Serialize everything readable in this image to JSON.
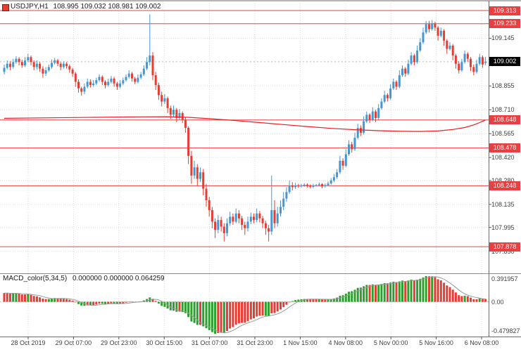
{
  "title": {
    "symbol": "USDJPY,H1",
    "ohlc": "108.995 109.032 108.981 109.002"
  },
  "indicator": {
    "label": "MACD_color(5,34,5)",
    "values": "0.000000 0.000000 0.064259"
  },
  "axes": {
    "price_gridlines": [
      {
        "value": 109.145,
        "label": "109.145"
      },
      {
        "value": 108.855,
        "label": "108.855"
      },
      {
        "value": 108.71,
        "label": "108.710"
      },
      {
        "value": 108.565,
        "label": "108.565"
      },
      {
        "value": 108.42,
        "label": "108.420"
      },
      {
        "value": 108.28,
        "label": "108.280"
      },
      {
        "value": 108.135,
        "label": "108.135"
      },
      {
        "value": 107.995,
        "label": "107.995"
      },
      {
        "value": 107.85,
        "label": "107.850"
      }
    ],
    "time_labels": [
      "28 Oct 2019",
      "29 Oct 07:00",
      "29 Oct 23:00",
      "30 Oct 15:00",
      "31 Oct 07:00",
      "31 Oct 23:00",
      "1 Nov 15:00",
      "4 Nov 08:00",
      "5 Nov 00:00",
      "5 Nov 16:00",
      "6 Nov 08:00"
    ],
    "macd_axis": {
      "max_label": "0.391957",
      "zero_label": "0.00",
      "min_label": "-0.479827"
    }
  },
  "levels": [
    {
      "value": 109.313,
      "label": "109.313"
    },
    {
      "value": 109.233,
      "label": "109.233"
    },
    {
      "value": 108.648,
      "label": "108.648"
    },
    {
      "value": 108.478,
      "label": "108.478"
    },
    {
      "value": 108.248,
      "label": "108.248"
    },
    {
      "value": 107.878,
      "label": "107.878"
    }
  ],
  "current_price": {
    "value": 109.002,
    "label": "109.002"
  },
  "chart_data": {
    "type": "candlestick",
    "symbol": "USDJPY",
    "timeframe": "H1",
    "current_bar": {
      "open": "108.995",
      "high": "109.032",
      "low": "108.981",
      "close": "109.002"
    },
    "colors": {
      "bull": "#4696d2",
      "bear": "#e63c32",
      "ma_line": "#e82020",
      "level_line": "#e84040",
      "level_badge_bg": "#e84040",
      "current_price_bg": "#000000",
      "macd_up": "#2ca02c",
      "macd_down": "#e63c32",
      "signal_line": "#9a9a9a",
      "grid": "#d9d9d9"
    },
    "indicator": {
      "type": "macd_histogram",
      "fast": 5,
      "slow": 34,
      "signal": 5,
      "initial_gap": 0.13
    },
    "ma_line_points": [
      [
        0,
        108.658
      ],
      [
        15,
        108.661
      ],
      [
        30,
        108.664
      ],
      [
        45,
        108.667
      ],
      [
        55,
        108.668
      ],
      [
        62,
        108.664
      ],
      [
        70,
        108.655
      ],
      [
        78,
        108.644
      ],
      [
        86,
        108.632
      ],
      [
        94,
        108.62
      ],
      [
        102,
        108.608
      ],
      [
        110,
        108.597
      ],
      [
        118,
        108.589
      ],
      [
        126,
        108.583
      ],
      [
        134,
        108.579
      ],
      [
        140,
        108.578
      ],
      [
        146,
        108.581
      ],
      [
        151,
        108.59
      ],
      [
        155,
        108.602
      ],
      [
        158,
        108.618
      ],
      [
        160,
        108.632
      ],
      [
        162,
        108.648
      ]
    ],
    "candles": [
      [
        108.94,
        108.985,
        108.925,
        108.965
      ],
      [
        108.965,
        109.01,
        108.955,
        108.99
      ],
      [
        108.99,
        109.005,
        108.95,
        108.97
      ],
      [
        108.97,
        109.02,
        108.96,
        109.0
      ],
      [
        109.0,
        109.035,
        108.99,
        109.02
      ],
      [
        109.02,
        109.03,
        108.98,
        109.0
      ],
      [
        109.0,
        109.015,
        108.965,
        108.98
      ],
      [
        108.98,
        109.03,
        108.97,
        109.01
      ],
      [
        109.01,
        109.05,
        109.0,
        109.03
      ],
      [
        109.03,
        109.04,
        108.98,
        109.0
      ],
      [
        109.0,
        109.01,
        108.95,
        108.97
      ],
      [
        108.97,
        109.01,
        108.955,
        108.99
      ],
      [
        108.99,
        109.0,
        108.94,
        108.96
      ],
      [
        108.96,
        108.975,
        108.905,
        108.93
      ],
      [
        108.93,
        108.97,
        108.915,
        108.95
      ],
      [
        108.95,
        108.985,
        108.94,
        108.97
      ],
      [
        108.97,
        109.015,
        108.96,
        108.995
      ],
      [
        108.995,
        109.025,
        108.985,
        109.01
      ],
      [
        109.01,
        109.02,
        108.975,
        108.99
      ],
      [
        108.99,
        109.0,
        108.95,
        108.97
      ],
      [
        108.97,
        109.005,
        108.96,
        108.99
      ],
      [
        108.99,
        109.0,
        108.96,
        108.975
      ],
      [
        108.975,
        108.985,
        108.935,
        108.955
      ],
      [
        108.955,
        108.965,
        108.91,
        108.93
      ],
      [
        108.93,
        108.94,
        108.85,
        108.88
      ],
      [
        108.88,
        108.895,
        108.815,
        108.84
      ],
      [
        108.84,
        108.85,
        108.795,
        108.82
      ],
      [
        108.82,
        108.87,
        108.805,
        108.85
      ],
      [
        108.85,
        108.9,
        108.84,
        108.88
      ],
      [
        108.88,
        108.895,
        108.845,
        108.86
      ],
      [
        108.86,
        108.89,
        108.85,
        108.87
      ],
      [
        108.87,
        108.905,
        108.86,
        108.89
      ],
      [
        108.89,
        108.925,
        108.88,
        108.91
      ],
      [
        108.91,
        108.92,
        108.86,
        108.88
      ],
      [
        108.88,
        108.89,
        108.84,
        108.86
      ],
      [
        108.86,
        108.9,
        108.85,
        108.88
      ],
      [
        108.88,
        108.915,
        108.87,
        108.9
      ],
      [
        108.9,
        108.91,
        108.85,
        108.87
      ],
      [
        108.87,
        108.88,
        108.83,
        108.85
      ],
      [
        108.85,
        108.89,
        108.84,
        108.87
      ],
      [
        108.87,
        108.905,
        108.86,
        108.89
      ],
      [
        108.89,
        108.925,
        108.88,
        108.91
      ],
      [
        108.91,
        108.95,
        108.9,
        108.93
      ],
      [
        108.93,
        108.94,
        108.88,
        108.9
      ],
      [
        108.9,
        108.91,
        108.865,
        108.88
      ],
      [
        108.88,
        108.925,
        108.87,
        108.905
      ],
      [
        108.905,
        108.94,
        108.895,
        108.925
      ],
      [
        108.925,
        108.98,
        108.915,
        108.96
      ],
      [
        108.96,
        109.03,
        108.95,
        109.0
      ],
      [
        109.0,
        109.29,
        108.98,
        109.04
      ],
      [
        109.04,
        109.06,
        108.89,
        108.92
      ],
      [
        108.92,
        108.94,
        108.83,
        108.86
      ],
      [
        108.86,
        108.875,
        108.77,
        108.8
      ],
      [
        108.8,
        108.82,
        108.73,
        108.76
      ],
      [
        108.76,
        108.805,
        108.745,
        108.78
      ],
      [
        108.78,
        108.79,
        108.69,
        108.72
      ],
      [
        108.72,
        108.735,
        108.655,
        108.68
      ],
      [
        108.68,
        108.735,
        108.665,
        108.71
      ],
      [
        108.71,
        108.72,
        108.635,
        108.66
      ],
      [
        108.66,
        108.715,
        108.65,
        108.69
      ],
      [
        108.69,
        108.7,
        108.63,
        108.65
      ],
      [
        108.65,
        108.665,
        108.57,
        108.6
      ],
      [
        108.6,
        108.61,
        108.38,
        108.43
      ],
      [
        108.43,
        108.46,
        108.26,
        108.31
      ],
      [
        108.31,
        108.4,
        108.29,
        108.36
      ],
      [
        108.36,
        108.38,
        108.25,
        108.29
      ],
      [
        108.29,
        108.36,
        108.27,
        108.33
      ],
      [
        108.33,
        108.35,
        108.19,
        108.23
      ],
      [
        108.23,
        108.26,
        108.12,
        108.16
      ],
      [
        108.16,
        108.18,
        108.06,
        108.1
      ],
      [
        108.1,
        108.12,
        107.99,
        108.03
      ],
      [
        108.03,
        108.05,
        107.93,
        107.98
      ],
      [
        107.98,
        108.07,
        107.96,
        108.04
      ],
      [
        108.04,
        108.06,
        107.97,
        108.0
      ],
      [
        108.0,
        108.02,
        107.91,
        107.96
      ],
      [
        107.96,
        108.05,
        107.94,
        108.02
      ],
      [
        108.02,
        108.09,
        108.005,
        108.06
      ],
      [
        108.06,
        108.08,
        108.01,
        108.03
      ],
      [
        108.03,
        108.11,
        108.02,
        108.08
      ],
      [
        108.08,
        108.1,
        108.02,
        108.05
      ],
      [
        108.05,
        108.065,
        107.98,
        108.01
      ],
      [
        108.01,
        108.03,
        107.95,
        107.99
      ],
      [
        107.99,
        108.06,
        107.97,
        108.03
      ],
      [
        108.03,
        108.085,
        108.015,
        108.06
      ],
      [
        108.06,
        108.08,
        108.02,
        108.04
      ],
      [
        108.04,
        108.11,
        108.025,
        108.08
      ],
      [
        108.08,
        108.095,
        108.025,
        108.05
      ],
      [
        108.05,
        108.065,
        107.99,
        108.02
      ],
      [
        108.02,
        108.035,
        107.95,
        107.99
      ],
      [
        107.99,
        108.01,
        107.91,
        107.97
      ],
      [
        107.97,
        108.31,
        107.95,
        108.1
      ],
      [
        108.1,
        108.16,
        107.99,
        108.02
      ],
      [
        108.02,
        108.12,
        108.0,
        108.08
      ],
      [
        108.08,
        108.16,
        108.06,
        108.12
      ],
      [
        108.12,
        108.21,
        108.1,
        108.17
      ],
      [
        108.17,
        108.24,
        108.15,
        108.21
      ],
      [
        108.21,
        108.28,
        108.2,
        108.25
      ],
      [
        108.25,
        108.27,
        108.22,
        108.24
      ],
      [
        108.24,
        108.265,
        108.23,
        108.25
      ],
      [
        108.25,
        108.26,
        108.235,
        108.245
      ],
      [
        108.245,
        108.26,
        108.237,
        108.25
      ],
      [
        108.25,
        108.263,
        108.242,
        108.255
      ],
      [
        108.255,
        108.263,
        108.238,
        108.248
      ],
      [
        108.248,
        108.256,
        108.232,
        108.242
      ],
      [
        108.242,
        108.26,
        108.234,
        108.25
      ],
      [
        108.25,
        108.26,
        108.242,
        108.252
      ],
      [
        108.252,
        108.268,
        108.246,
        108.258
      ],
      [
        108.258,
        108.264,
        108.233,
        108.245
      ],
      [
        108.245,
        108.262,
        108.237,
        108.252
      ],
      [
        108.252,
        108.274,
        108.246,
        108.262
      ],
      [
        108.262,
        108.295,
        108.254,
        108.28
      ],
      [
        108.28,
        108.32,
        108.27,
        108.3
      ],
      [
        108.3,
        108.35,
        108.29,
        108.33
      ],
      [
        108.33,
        108.43,
        108.32,
        108.4
      ],
      [
        108.4,
        108.415,
        108.345,
        108.37
      ],
      [
        108.37,
        108.47,
        108.36,
        108.44
      ],
      [
        108.44,
        108.525,
        108.43,
        108.5
      ],
      [
        108.5,
        108.515,
        108.45,
        108.47
      ],
      [
        108.47,
        108.57,
        108.46,
        108.54
      ],
      [
        108.54,
        108.625,
        108.53,
        108.6
      ],
      [
        108.6,
        108.615,
        108.55,
        108.57
      ],
      [
        108.57,
        108.67,
        108.56,
        108.64
      ],
      [
        108.64,
        108.7,
        108.63,
        108.68
      ],
      [
        108.68,
        108.69,
        108.63,
        108.65
      ],
      [
        108.65,
        108.725,
        108.64,
        108.7
      ],
      [
        108.7,
        108.71,
        108.635,
        108.66
      ],
      [
        108.66,
        108.745,
        108.65,
        108.72
      ],
      [
        108.72,
        108.78,
        108.71,
        108.76
      ],
      [
        108.76,
        108.825,
        108.75,
        108.8
      ],
      [
        108.8,
        108.81,
        108.76,
        108.78
      ],
      [
        108.78,
        108.865,
        108.77,
        108.84
      ],
      [
        108.84,
        108.9,
        108.83,
        108.88
      ],
      [
        108.88,
        108.89,
        108.83,
        108.85
      ],
      [
        108.85,
        108.95,
        108.84,
        108.92
      ],
      [
        108.92,
        108.98,
        108.91,
        108.96
      ],
      [
        108.96,
        108.97,
        108.91,
        108.93
      ],
      [
        108.93,
        109.015,
        108.92,
        108.99
      ],
      [
        108.99,
        109.06,
        108.98,
        109.04
      ],
      [
        109.04,
        109.05,
        108.98,
        109.0
      ],
      [
        109.0,
        109.1,
        108.99,
        109.07
      ],
      [
        109.07,
        109.145,
        109.06,
        109.12
      ],
      [
        109.12,
        109.21,
        109.11,
        109.18
      ],
      [
        109.18,
        109.25,
        109.17,
        109.23
      ],
      [
        109.23,
        109.25,
        109.18,
        109.2
      ],
      [
        109.2,
        109.255,
        109.19,
        109.235
      ],
      [
        109.235,
        109.245,
        109.19,
        109.21
      ],
      [
        109.21,
        109.22,
        109.13,
        109.16
      ],
      [
        109.16,
        109.21,
        109.15,
        109.19
      ],
      [
        109.19,
        109.2,
        109.1,
        109.13
      ],
      [
        109.13,
        109.14,
        109.05,
        109.08
      ],
      [
        109.08,
        109.12,
        109.07,
        109.1
      ],
      [
        109.1,
        109.11,
        109.01,
        109.04
      ],
      [
        109.04,
        109.05,
        108.96,
        108.99
      ],
      [
        108.99,
        109.005,
        108.93,
        108.95
      ],
      [
        108.95,
        109.02,
        108.94,
        109.0
      ],
      [
        109.0,
        109.07,
        108.99,
        109.05
      ],
      [
        109.05,
        109.06,
        109.0,
        109.02
      ],
      [
        109.02,
        109.03,
        108.945,
        108.97
      ],
      [
        108.97,
        108.985,
        108.92,
        108.94
      ],
      [
        108.94,
        109.015,
        108.93,
        108.99
      ],
      [
        108.99,
        109.05,
        108.98,
        109.03
      ],
      [
        109.03,
        109.04,
        108.965,
        108.985
      ],
      [
        108.995,
        109.032,
        108.981,
        109.002
      ]
    ]
  }
}
